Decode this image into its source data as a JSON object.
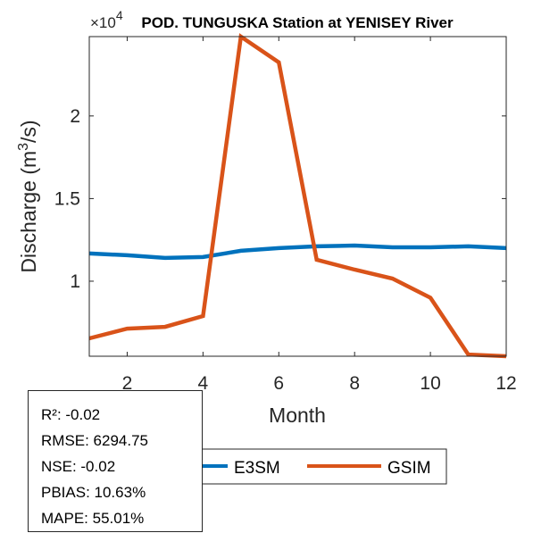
{
  "chart_data": {
    "type": "line",
    "title": "POD. TUNGUSKA  Station at  YENISEY  River",
    "xlabel": "Month",
    "ylabel": "Discharge (m³/s)",
    "ylabel_base": "Discharge (m",
    "ylabel_sup": "3",
    "ylabel_tail": "/s)",
    "y_multiplier": "×10",
    "y_multiplier_exp": "4",
    "x": [
      1,
      2,
      3,
      4,
      5,
      6,
      7,
      8,
      9,
      10,
      11,
      12
    ],
    "xlim": [
      1,
      12
    ],
    "ylim": [
      5460,
      24800
    ],
    "xticks": [
      2,
      4,
      6,
      8,
      10,
      12
    ],
    "xtick_labels": [
      "2",
      "4",
      "6",
      "8",
      "10",
      "12"
    ],
    "yticks": [
      10000,
      15000,
      20000
    ],
    "ytick_labels": [
      "1",
      "1.5",
      "2"
    ],
    "grid": false,
    "legend_placement": "bottom-outside",
    "series": [
      {
        "name": "E3SM",
        "color": "#0072BD",
        "values": [
          11680,
          11570,
          11410,
          11460,
          11840,
          12000,
          12110,
          12160,
          12050,
          12050,
          12110,
          12000
        ]
      },
      {
        "name": "GSIM",
        "color": "#D95319",
        "values": [
          6540,
          7130,
          7240,
          7890,
          24800,
          23240,
          11300,
          10700,
          10160,
          9000,
          5560,
          5460
        ]
      }
    ]
  },
  "stats": {
    "r2": "R²: -0.02",
    "rmse": "RMSE: 6294.75",
    "nse": "NSE: -0.02",
    "pbias": "PBIAS: 10.63%",
    "mape": "MAPE: 55.01%"
  }
}
